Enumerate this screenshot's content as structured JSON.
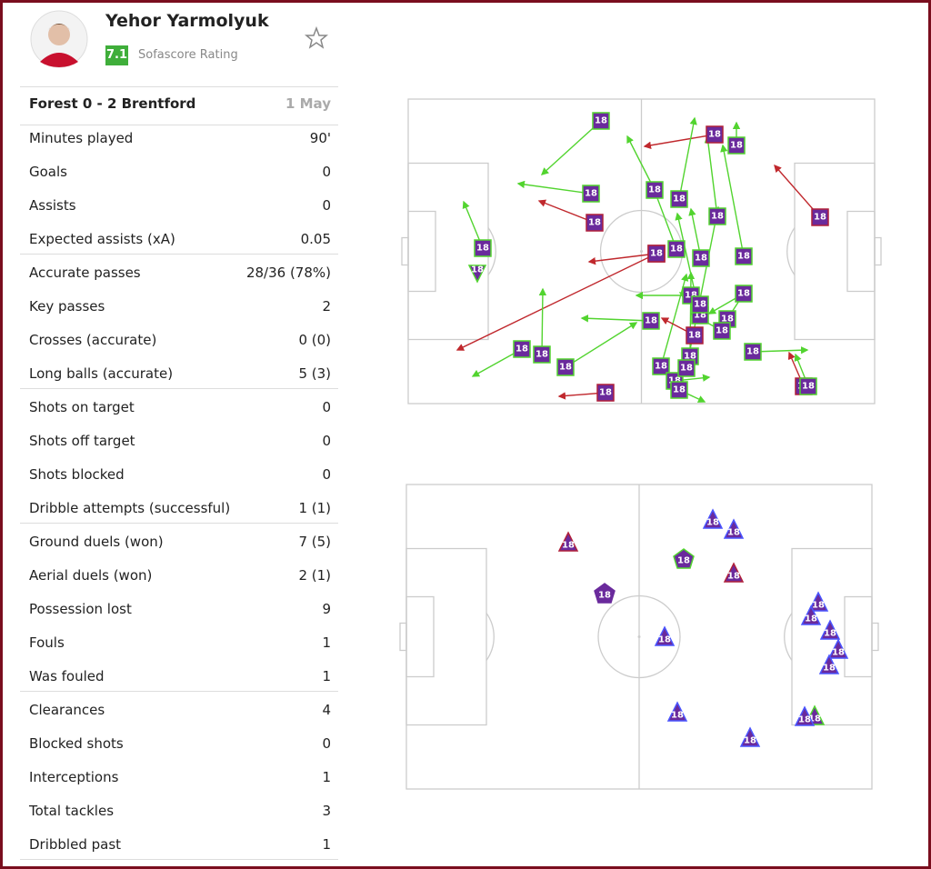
{
  "player": {
    "name": "Yehor Yarmolyuk",
    "rating": "7.1",
    "rating_label": "Sofascore Rating"
  },
  "match": {
    "title": "Forest 0 - 2 Brentford",
    "date": "1 May"
  },
  "stat_groups": [
    [
      {
        "label": "Minutes played",
        "value": "90'"
      },
      {
        "label": "Goals",
        "value": 0
      },
      {
        "label": "Assists",
        "value": 0
      },
      {
        "label": "Expected assists (xA)",
        "value": 0.05
      }
    ],
    [
      {
        "label": "Accurate passes",
        "value": "28/36 (78%)"
      },
      {
        "label": "Key passes",
        "value": 2
      },
      {
        "label": "Crosses (accurate)",
        "value": "0 (0)"
      },
      {
        "label": "Long balls (accurate)",
        "value": "5 (3)"
      }
    ],
    [
      {
        "label": "Shots on target",
        "value": 0
      },
      {
        "label": "Shots off target",
        "value": 0
      },
      {
        "label": "Shots blocked",
        "value": 0
      },
      {
        "label": "Dribble attempts (successful)",
        "value": "1 (1)"
      }
    ],
    [
      {
        "label": "Ground duels (won)",
        "value": "7 (5)"
      },
      {
        "label": "Aerial duels (won)",
        "value": "2 (1)"
      },
      {
        "label": "Possession lost",
        "value": 9
      },
      {
        "label": "Fouls",
        "value": 1
      },
      {
        "label": "Was fouled",
        "value": 1
      }
    ],
    [
      {
        "label": "Clearances",
        "value": 4
      },
      {
        "label": "Blocked shots",
        "value": 0
      },
      {
        "label": "Interceptions",
        "value": 1
      },
      {
        "label": "Total tackles",
        "value": 3
      },
      {
        "label": "Dribbled past",
        "value": 1
      }
    ]
  ],
  "marker_label": "18"
}
